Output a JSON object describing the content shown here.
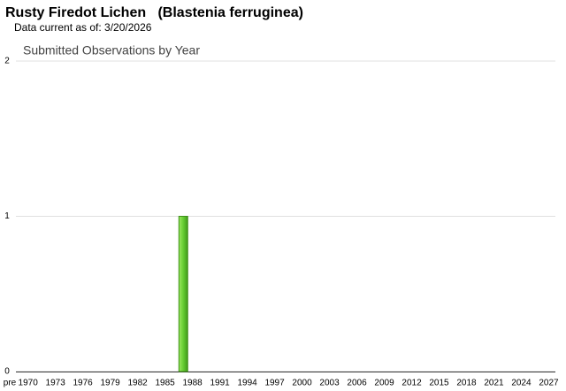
{
  "chart_data": {
    "type": "bar",
    "header": "Rusty Firedot Lichen   (Blastenia ferruginea)",
    "subtitle": "Data current as of: 3/20/2026",
    "title": "Submitted Observations by Year",
    "categories": [
      "pre",
      null,
      "1970",
      null,
      null,
      "1973",
      null,
      null,
      "1976",
      null,
      null,
      "1979",
      null,
      null,
      "1982",
      null,
      null,
      "1985",
      null,
      null,
      "1988",
      null,
      null,
      "1991",
      null,
      null,
      "1994",
      null,
      null,
      "1997",
      null,
      null,
      "2000",
      null,
      null,
      "2003",
      null,
      null,
      "2006",
      null,
      null,
      "2009",
      null,
      null,
      "2012",
      null,
      null,
      "2015",
      null,
      null,
      "2018",
      null,
      null,
      "2021",
      null,
      null,
      "2024",
      null,
      null,
      "2027"
    ],
    "values": [
      0,
      0,
      0,
      0,
      0,
      0,
      0,
      0,
      0,
      0,
      0,
      0,
      0,
      0,
      0,
      0,
      0,
      0,
      0,
      1,
      0,
      0,
      0,
      0,
      0,
      0,
      0,
      0,
      0,
      0,
      0,
      0,
      0,
      0,
      0,
      0,
      0,
      0,
      0,
      0,
      0,
      0,
      0,
      0,
      0,
      0,
      0,
      0,
      0,
      0,
      0,
      0,
      0,
      0,
      0,
      0,
      0,
      0,
      0,
      0
    ],
    "color": "#66cc33",
    "ylim": [
      0,
      2
    ],
    "yticks": [
      0,
      1,
      2
    ],
    "grid": true
  }
}
